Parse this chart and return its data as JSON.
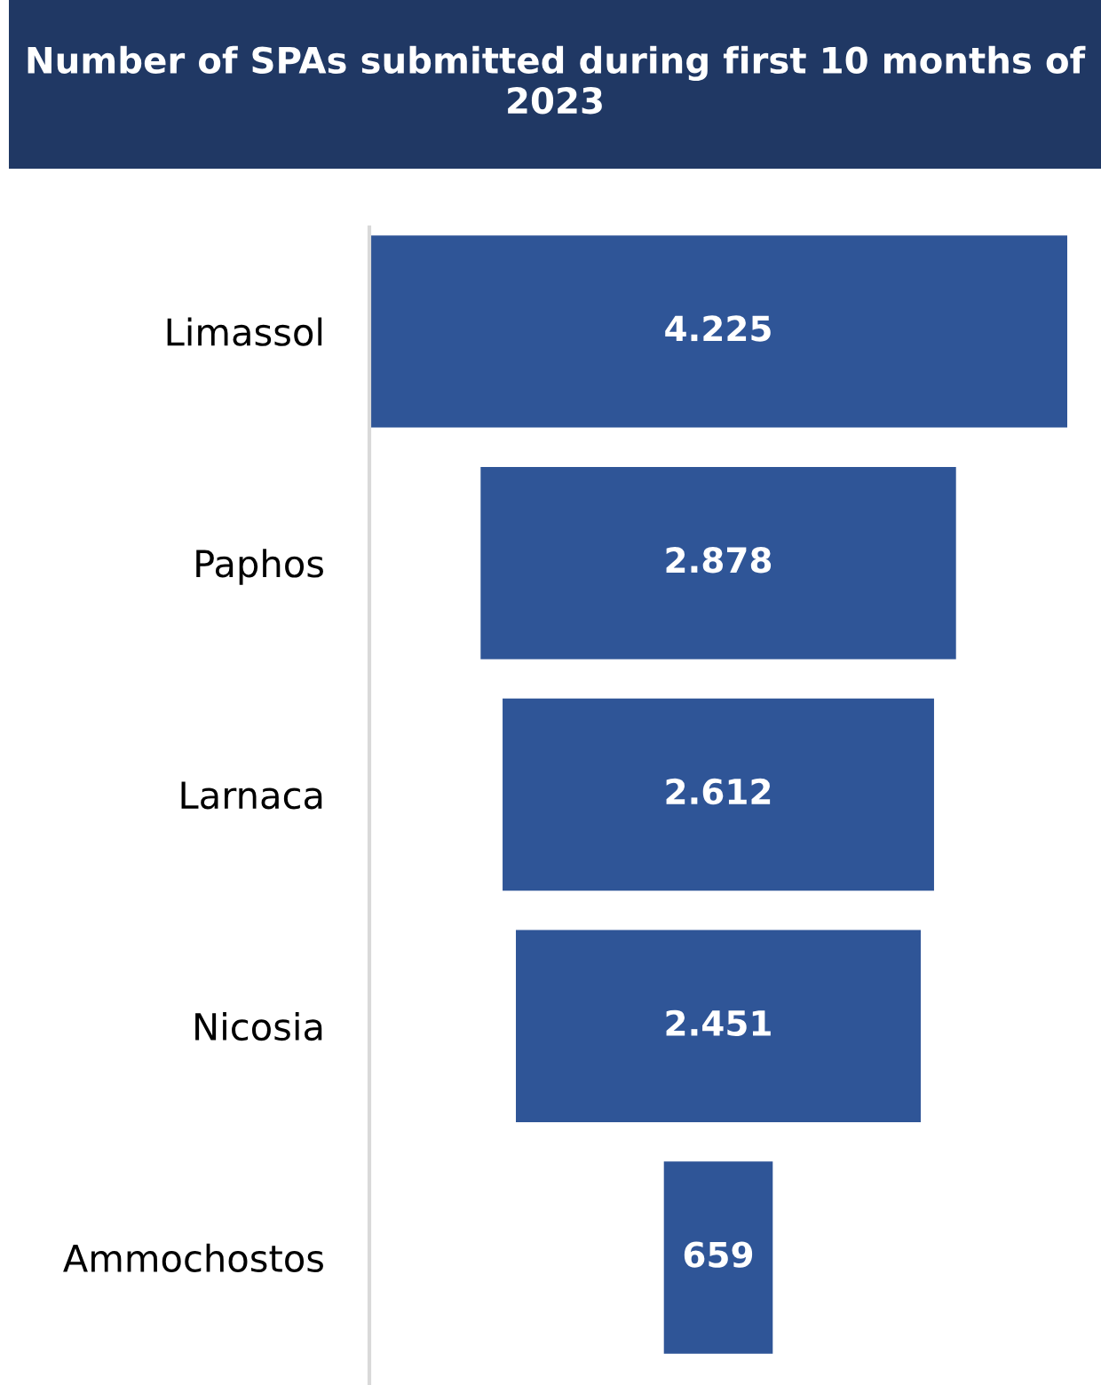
{
  "chart_data": {
    "type": "other",
    "title": "Number of SPAs submitted during first 10 months of 2023",
    "categories": [
      "Limassol",
      "Paphos",
      "Larnaca",
      "Nicosia",
      "Ammochostos"
    ],
    "values": [
      4225,
      2878,
      2612,
      2451,
      659
    ],
    "value_labels": [
      "4.225",
      "2.878",
      "2.612",
      "2.451",
      "659"
    ],
    "color": "#2f5597"
  }
}
